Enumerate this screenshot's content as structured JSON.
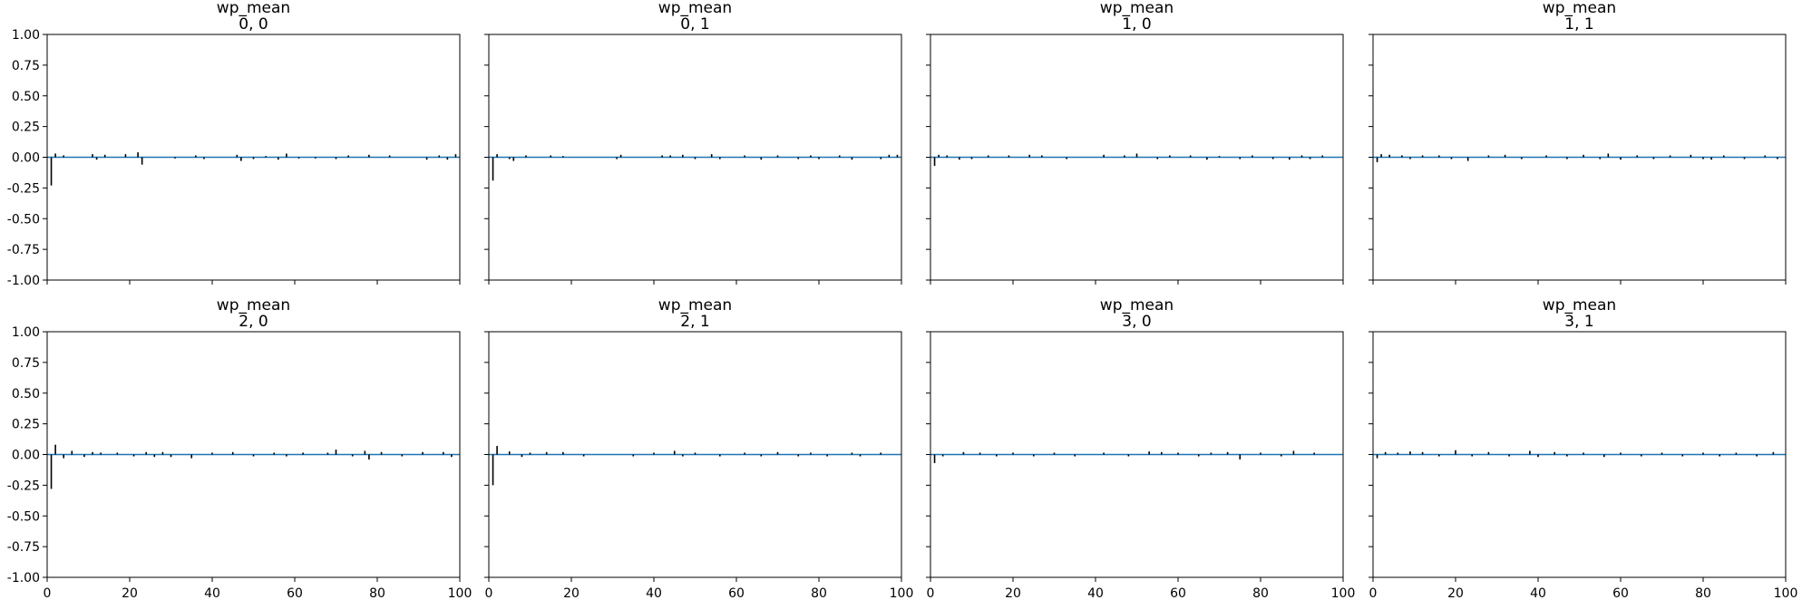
{
  "chart_data": {
    "type": "bar",
    "grid": false,
    "colors": {
      "zero_line": "#1f77b4",
      "bars": "#000000"
    },
    "xlim": [
      0,
      100
    ],
    "ylim": [
      -1.0,
      1.0
    ],
    "xticks": [
      "0",
      "20",
      "40",
      "60",
      "80",
      "100"
    ],
    "yticks": [
      "1.00",
      "0.75",
      "0.50",
      "0.25",
      "0.00",
      "-0.25",
      "-0.50",
      "-0.75",
      "-1.00"
    ],
    "panels": [
      {
        "title": "wp_mean",
        "coords": "0, 0",
        "lags": [
          1,
          2,
          4,
          11,
          12,
          14,
          19,
          22,
          23,
          31,
          36,
          38,
          46,
          47,
          50,
          53,
          56,
          58,
          61,
          65,
          70,
          73,
          78,
          83,
          92,
          95,
          97,
          99
        ],
        "values": [
          -0.23,
          0.03,
          0.015,
          0.025,
          -0.02,
          0.02,
          0.025,
          0.04,
          -0.06,
          -0.01,
          0.015,
          -0.015,
          0.02,
          -0.03,
          -0.015,
          0.01,
          -0.02,
          0.03,
          -0.01,
          -0.01,
          -0.015,
          0.015,
          0.02,
          0.015,
          -0.02,
          0.015,
          -0.02,
          0.025
        ]
      },
      {
        "title": "wp_mean",
        "coords": "0, 1",
        "lags": [
          1,
          2,
          5,
          6,
          9,
          15,
          18,
          31,
          32,
          42,
          44,
          47,
          50,
          54,
          56,
          62,
          66,
          70,
          75,
          78,
          80,
          85,
          88,
          95,
          97,
          99
        ],
        "values": [
          -0.19,
          0.025,
          -0.015,
          -0.03,
          0.015,
          0.015,
          0.01,
          -0.015,
          0.02,
          0.015,
          0.015,
          0.02,
          -0.015,
          0.025,
          -0.015,
          0.015,
          -0.02,
          0.015,
          -0.015,
          0.015,
          -0.015,
          0.015,
          -0.02,
          -0.015,
          0.02,
          0.02
        ]
      },
      {
        "title": "wp_mean",
        "coords": "1, 0",
        "lags": [
          1,
          2,
          4,
          7,
          10,
          14,
          19,
          24,
          27,
          33,
          42,
          47,
          50,
          55,
          58,
          63,
          67,
          70,
          75,
          78,
          83,
          87,
          90,
          92,
          95
        ],
        "values": [
          -0.07,
          0.02,
          0.015,
          -0.02,
          -0.015,
          0.015,
          0.015,
          0.02,
          0.015,
          -0.015,
          0.02,
          0.015,
          0.03,
          -0.015,
          0.015,
          0.015,
          -0.02,
          0.01,
          -0.015,
          0.015,
          -0.015,
          -0.02,
          0.015,
          -0.015,
          0.015
        ]
      },
      {
        "title": "wp_mean",
        "coords": "1, 1",
        "lags": [
          1,
          2,
          4,
          7,
          9,
          12,
          16,
          19,
          23,
          28,
          32,
          36,
          42,
          47,
          51,
          55,
          57,
          60,
          64,
          68,
          72,
          77,
          80,
          82,
          85,
          90,
          95,
          98
        ],
        "values": [
          -0.04,
          0.025,
          0.02,
          0.015,
          -0.015,
          0.015,
          0.015,
          -0.015,
          -0.03,
          0.015,
          0.02,
          -0.015,
          0.015,
          -0.015,
          0.02,
          -0.015,
          0.03,
          -0.02,
          0.015,
          -0.015,
          0.015,
          0.02,
          -0.015,
          -0.02,
          0.015,
          -0.015,
          0.015,
          -0.015
        ]
      },
      {
        "title": "wp_mean",
        "coords": "2, 0",
        "lags": [
          1,
          2,
          4,
          6,
          9,
          11,
          13,
          17,
          21,
          24,
          26,
          28,
          30,
          35,
          40,
          45,
          50,
          55,
          58,
          62,
          68,
          70,
          74,
          77,
          78,
          81,
          86,
          91,
          96,
          98
        ],
        "values": [
          -0.28,
          0.08,
          -0.03,
          0.03,
          -0.02,
          0.02,
          0.015,
          0.015,
          -0.015,
          0.02,
          -0.02,
          0.02,
          -0.02,
          -0.03,
          0.015,
          0.02,
          -0.015,
          0.015,
          -0.015,
          0.015,
          0.015,
          0.04,
          -0.015,
          0.03,
          -0.04,
          0.02,
          -0.015,
          0.02,
          0.02,
          -0.02
        ]
      },
      {
        "title": "wp_mean",
        "coords": "2, 1",
        "lags": [
          1,
          2,
          5,
          8,
          10,
          14,
          18,
          23,
          35,
          40,
          45,
          47,
          50,
          56,
          62,
          66,
          70,
          75,
          78,
          82,
          88,
          90,
          95
        ],
        "values": [
          -0.25,
          0.07,
          0.025,
          -0.02,
          0.015,
          0.02,
          0.02,
          -0.015,
          -0.015,
          0.015,
          0.03,
          -0.015,
          0.015,
          -0.015,
          0.015,
          -0.015,
          0.02,
          -0.015,
          0.015,
          -0.015,
          0.015,
          -0.015,
          0.015
        ]
      },
      {
        "title": "wp_mean",
        "coords": "3, 0",
        "lags": [
          1,
          3,
          8,
          12,
          16,
          20,
          25,
          30,
          35,
          42,
          48,
          53,
          56,
          60,
          65,
          68,
          72,
          75,
          80,
          85,
          88,
          93
        ],
        "values": [
          -0.07,
          -0.015,
          0.02,
          0.015,
          -0.015,
          0.015,
          -0.015,
          0.015,
          -0.015,
          0.015,
          -0.015,
          0.025,
          0.02,
          0.015,
          -0.015,
          0.015,
          0.02,
          -0.04,
          0.015,
          -0.015,
          0.03,
          0.015
        ]
      },
      {
        "title": "wp_mean",
        "coords": "3, 1",
        "lags": [
          1,
          3,
          6,
          9,
          12,
          16,
          20,
          24,
          28,
          33,
          38,
          40,
          44,
          47,
          51,
          56,
          60,
          65,
          70,
          75,
          80,
          84,
          88,
          93,
          97
        ],
        "values": [
          -0.03,
          0.02,
          0.015,
          0.025,
          0.02,
          -0.015,
          0.035,
          -0.015,
          0.02,
          -0.015,
          0.03,
          -0.02,
          0.02,
          -0.015,
          0.015,
          -0.02,
          0.015,
          -0.015,
          0.015,
          -0.015,
          0.015,
          -0.015,
          0.015,
          -0.015,
          0.02
        ]
      }
    ]
  }
}
